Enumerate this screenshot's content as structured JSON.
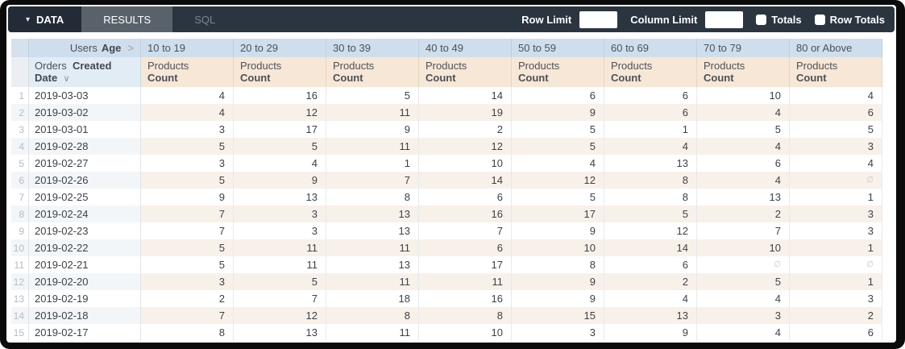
{
  "toolbar": {
    "data_tab": "DATA",
    "data_caret": "▾",
    "results_tab": "RESULTS",
    "sql_tab": "SQL",
    "row_limit_label": "Row Limit",
    "row_limit_value": "",
    "column_limit_label": "Column Limit",
    "column_limit_value": "",
    "totals_label": "Totals",
    "totals_checked": false,
    "row_totals_label": "Row Totals",
    "row_totals_checked": false
  },
  "table": {
    "pivot_dimension": {
      "prefix": "Users",
      "bold": "Age",
      "chevron": ">"
    },
    "row_dimension": {
      "prefix": "Orders",
      "bold_line1": "Created",
      "bold_line2": "Date",
      "sort_icon": "∨"
    },
    "pivot_values": [
      "10 to 19",
      "20 to 29",
      "30 to 39",
      "40 to 49",
      "50 to 59",
      "60 to 69",
      "70 to 79",
      "80 or Above"
    ],
    "measure": {
      "view": "Products",
      "field": "Count"
    },
    "null_symbol": "∅",
    "rows": [
      {
        "num": "1",
        "date": "2019-03-03",
        "values": [
          4,
          16,
          5,
          14,
          6,
          6,
          10,
          4
        ]
      },
      {
        "num": "2",
        "date": "2019-03-02",
        "values": [
          4,
          12,
          11,
          19,
          9,
          6,
          4,
          6
        ]
      },
      {
        "num": "3",
        "date": "2019-03-01",
        "values": [
          3,
          17,
          9,
          2,
          5,
          1,
          5,
          5
        ]
      },
      {
        "num": "4",
        "date": "2019-02-28",
        "values": [
          5,
          5,
          11,
          12,
          5,
          4,
          4,
          3
        ]
      },
      {
        "num": "5",
        "date": "2019-02-27",
        "values": [
          3,
          4,
          1,
          10,
          4,
          13,
          6,
          4
        ]
      },
      {
        "num": "6",
        "date": "2019-02-26",
        "values": [
          5,
          9,
          7,
          14,
          12,
          8,
          4,
          null
        ]
      },
      {
        "num": "7",
        "date": "2019-02-25",
        "values": [
          9,
          13,
          8,
          6,
          5,
          8,
          13,
          1
        ]
      },
      {
        "num": "8",
        "date": "2019-02-24",
        "values": [
          7,
          3,
          13,
          16,
          17,
          5,
          2,
          3
        ]
      },
      {
        "num": "9",
        "date": "2019-02-23",
        "values": [
          7,
          3,
          13,
          7,
          9,
          12,
          7,
          3
        ]
      },
      {
        "num": "10",
        "date": "2019-02-22",
        "values": [
          5,
          11,
          11,
          6,
          10,
          14,
          10,
          1
        ]
      },
      {
        "num": "11",
        "date": "2019-02-21",
        "values": [
          5,
          11,
          13,
          17,
          8,
          6,
          null,
          null
        ]
      },
      {
        "num": "12",
        "date": "2019-02-20",
        "values": [
          3,
          5,
          11,
          11,
          9,
          2,
          5,
          1
        ]
      },
      {
        "num": "13",
        "date": "2019-02-19",
        "values": [
          2,
          7,
          18,
          16,
          9,
          4,
          4,
          3
        ]
      },
      {
        "num": "14",
        "date": "2019-02-18",
        "values": [
          7,
          12,
          8,
          8,
          15,
          13,
          3,
          2
        ]
      },
      {
        "num": "15",
        "date": "2019-02-17",
        "values": [
          8,
          13,
          11,
          10,
          3,
          9,
          4,
          6
        ]
      }
    ]
  },
  "colors": {
    "topbar_bg": "#2b3540",
    "active_tab_bg": "#222b36",
    "results_tab_bg": "#59626b",
    "pivot_header_bg": "#cfdeed",
    "measure_header_bg": "#f7e7d7",
    "row_header_bg": "#e2ecf5",
    "even_row_dim_bg": "#f3f6f9",
    "even_row_val_bg": "#f8f1ea"
  }
}
